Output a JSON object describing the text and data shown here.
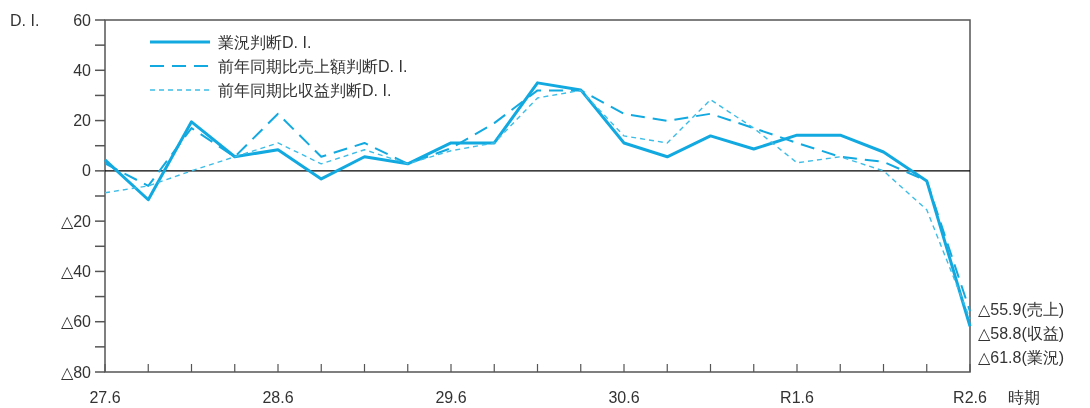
{
  "chart_data": {
    "type": "line",
    "ylabel": "D. I.",
    "xlabel": "時期",
    "categories": [
      "27.6",
      null,
      null,
      null,
      "28.6",
      null,
      null,
      null,
      "29.6",
      null,
      null,
      null,
      "30.6",
      null,
      null,
      null,
      "R1.6",
      null,
      null,
      null,
      "R2.6"
    ],
    "series": [
      {
        "name": "業況判断D. I.",
        "color": "#12a9e0",
        "line_style": "solid",
        "values": [
          4.4,
          -11.5,
          19.5,
          5.6,
          8.4,
          -3.2,
          5.6,
          2.8,
          11.1,
          11.1,
          35,
          32.2,
          11.1,
          5.6,
          13.9,
          8.7,
          14.2,
          14.2,
          7.5,
          -4,
          -61.8
        ]
      },
      {
        "name": "前年同期比売上額判断D. I.",
        "color": "#12a9e0",
        "line_style": "dashed",
        "values": [
          3,
          -6,
          17,
          5.6,
          22.7,
          5.6,
          11.1,
          2.8,
          9,
          19,
          32,
          32,
          22.7,
          19.9,
          22.7,
          17,
          11.1,
          5.6,
          3.6,
          -4,
          -55.9
        ]
      },
      {
        "name": "前年同期比収益判断D. I.",
        "color": "#3cbde8",
        "line_style": "dotted",
        "values": [
          -8.7,
          -6,
          0,
          5.6,
          11.1,
          2.8,
          8.4,
          2.8,
          8,
          11.1,
          29,
          32,
          13.9,
          11.1,
          28.3,
          17,
          3.2,
          5.6,
          0,
          -15.5,
          -58.8
        ]
      }
    ],
    "ylim": [
      -80,
      60
    ],
    "yticks": [
      {
        "value": -80,
        "label": "△80"
      },
      {
        "value": -70,
        "label": null
      },
      {
        "value": -60,
        "label": "△60"
      },
      {
        "value": -50,
        "label": null
      },
      {
        "value": -40,
        "label": "△40"
      },
      {
        "value": -30,
        "label": null
      },
      {
        "value": -20,
        "label": "△20"
      },
      {
        "value": -10,
        "label": null
      },
      0,
      {
        "value": 10,
        "label": null
      },
      20,
      {
        "value": 30,
        "label": null
      },
      40,
      {
        "value": 50,
        "label": null
      },
      60
    ],
    "ref_lines": [
      {
        "axis": "y",
        "value": 0,
        "color": "#000000"
      }
    ],
    "annotations": [
      {
        "text": "△55.9(売上)",
        "x": "R2.6",
        "y": -55.9
      },
      {
        "text": "△58.8(収益)",
        "x": "R2.6",
        "y": -58.8
      },
      {
        "text": "△61.8(業況)",
        "x": "R2.6",
        "y": -61.8
      }
    ],
    "legend": "top left",
    "marker": "none",
    "grid": false
  }
}
